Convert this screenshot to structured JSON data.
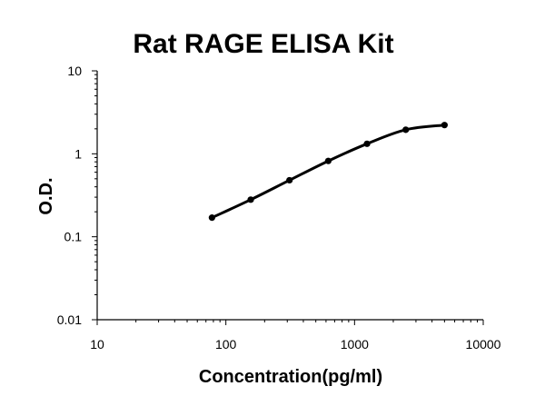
{
  "chart_data": {
    "type": "line",
    "title": "Rat RAGE ELISA Kit",
    "xlabel": "Concentration(pg/ml)",
    "ylabel": "O.D.",
    "xscale": "log",
    "yscale": "log",
    "xlim": [
      10,
      10000
    ],
    "ylim": [
      0.01,
      10
    ],
    "x_tick_labels": [
      "10",
      "100",
      "1000",
      "10000"
    ],
    "y_tick_labels": [
      "0.01",
      "0.1",
      "1",
      "10"
    ],
    "grid": false,
    "series": [
      {
        "x": [
          78,
          156,
          312,
          625,
          1250,
          2500,
          5000
        ],
        "y": [
          0.17,
          0.28,
          0.48,
          0.82,
          1.32,
          1.95,
          2.22
        ]
      }
    ]
  }
}
